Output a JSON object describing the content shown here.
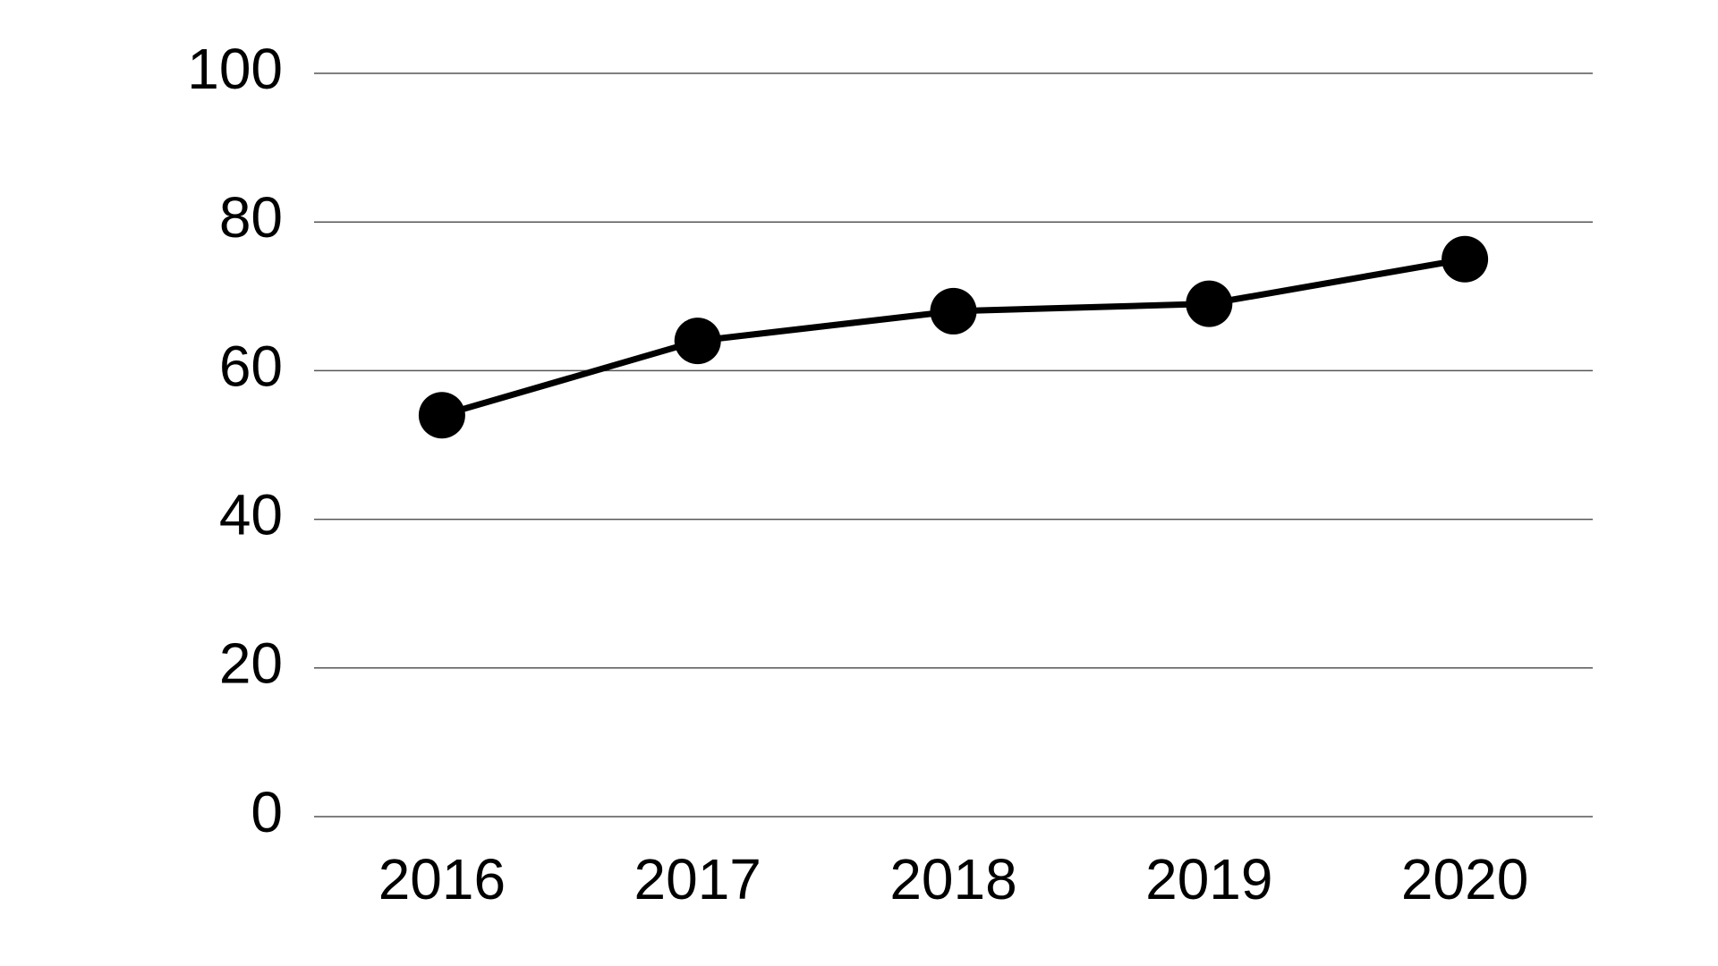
{
  "chart_data": {
    "type": "line",
    "categories": [
      "2016",
      "2017",
      "2018",
      "2019",
      "2020"
    ],
    "series": [
      {
        "color": "#000000",
        "values": [
          54,
          64,
          68,
          69,
          75
        ]
      }
    ],
    "ylim": [
      0,
      100
    ],
    "yticks": [
      0,
      20,
      40,
      60,
      80,
      100
    ],
    "grid": true
  }
}
